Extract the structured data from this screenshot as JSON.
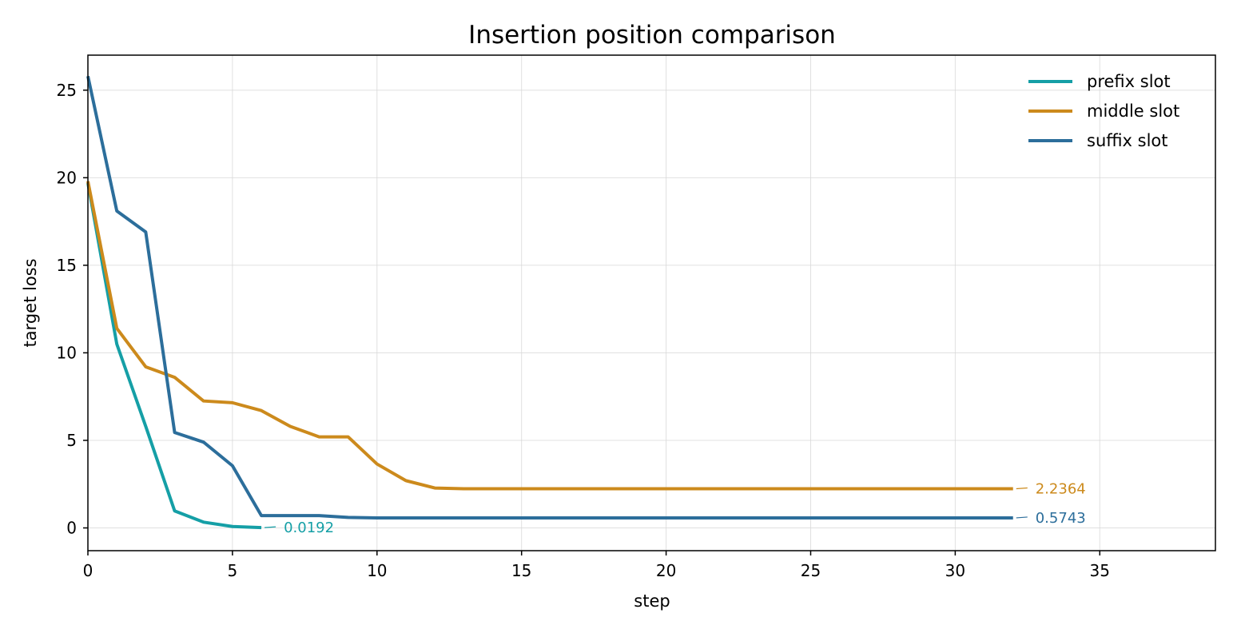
{
  "chart_data": {
    "type": "line",
    "title": "Insertion position comparison",
    "xlabel": "step",
    "ylabel": "target loss",
    "xlim": [
      0,
      39
    ],
    "ylim": [
      -1.3,
      27
    ],
    "xticks": [
      0,
      5,
      10,
      15,
      20,
      25,
      30,
      35
    ],
    "yticks": [
      0,
      5,
      10,
      15,
      20,
      25
    ],
    "grid": true,
    "legend_position": "top-right",
    "series": [
      {
        "name": "prefix slot",
        "color": "#159fa6",
        "x": [
          0,
          1,
          2,
          3,
          4,
          5,
          6
        ],
        "y": [
          19.7,
          10.5,
          5.8,
          0.97,
          0.33,
          0.08,
          0.0192
        ],
        "end_label": "0.0192"
      },
      {
        "name": "middle slot",
        "color": "#cc8a1c",
        "x": [
          0,
          1,
          2,
          3,
          4,
          5,
          6,
          7,
          8,
          9,
          10,
          11,
          12,
          13,
          14,
          15,
          16,
          17,
          18,
          19,
          20,
          21,
          22,
          23,
          24,
          25,
          26,
          27,
          28,
          29,
          30,
          31,
          32
        ],
        "y": [
          19.8,
          11.4,
          9.2,
          8.6,
          7.25,
          7.15,
          6.7,
          5.8,
          5.2,
          5.2,
          3.65,
          2.7,
          2.28,
          2.24,
          2.2364,
          2.2364,
          2.2364,
          2.2364,
          2.2364,
          2.2364,
          2.2364,
          2.2364,
          2.2364,
          2.2364,
          2.2364,
          2.2364,
          2.2364,
          2.2364,
          2.2364,
          2.2364,
          2.2364,
          2.2364,
          2.2364
        ],
        "end_label": "2.2364"
      },
      {
        "name": "suffix slot",
        "color": "#2c6e9b",
        "x": [
          0,
          1,
          2,
          3,
          4,
          5,
          6,
          7,
          8,
          9,
          10,
          11,
          12,
          13,
          14,
          15,
          16,
          17,
          18,
          19,
          20,
          21,
          22,
          23,
          24,
          25,
          26,
          27,
          28,
          29,
          30,
          31,
          32
        ],
        "y": [
          25.8,
          18.1,
          16.9,
          5.45,
          4.9,
          3.55,
          0.7,
          0.7,
          0.7,
          0.6,
          0.5743,
          0.5743,
          0.5743,
          0.5743,
          0.5743,
          0.5743,
          0.5743,
          0.5743,
          0.5743,
          0.5743,
          0.5743,
          0.5743,
          0.5743,
          0.5743,
          0.5743,
          0.5743,
          0.5743,
          0.5743,
          0.5743,
          0.5743,
          0.5743,
          0.5743,
          0.5743
        ],
        "end_label": "0.5743"
      }
    ]
  }
}
